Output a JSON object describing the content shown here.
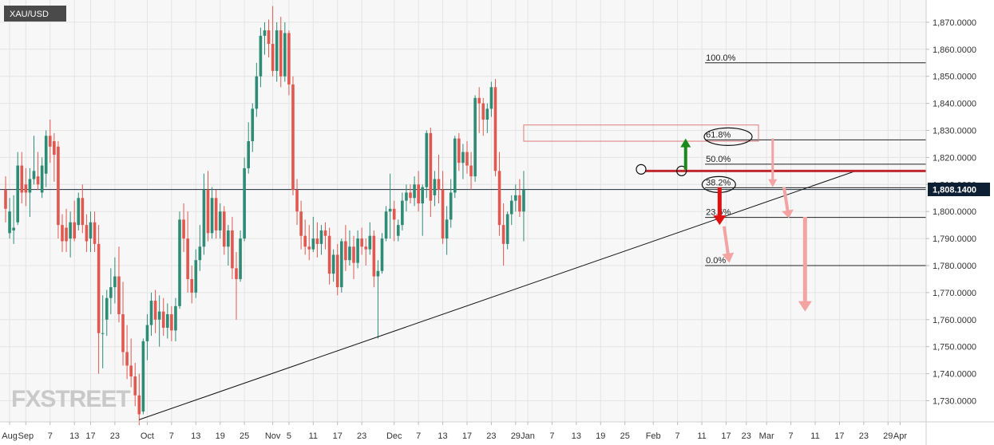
{
  "symbol": "XAU/USD",
  "logo_text": "FXSTREET",
  "current_price_label": "1,808.1400",
  "colors": {
    "up": "#2e8b75",
    "down": "#e0584f",
    "resistance": "#c0282f",
    "arrow_up": "#1a8a1a",
    "arrow_down": "#e01010",
    "arrow_faded": "#f4a3a3",
    "price_tag": "#0d1f33",
    "logo": "#c9c9c9"
  },
  "chart_data": {
    "type": "candlestick",
    "title": "",
    "y_range": [
      1721,
      1877
    ],
    "x_range": [
      0,
      188
    ],
    "y_ticks": [
      {
        "value": 1730,
        "label": "1,730.0000"
      },
      {
        "value": 1740,
        "label": "1,740.0000"
      },
      {
        "value": 1750,
        "label": "1,750.0000"
      },
      {
        "value": 1760,
        "label": "1,760.0000"
      },
      {
        "value": 1770,
        "label": "1,770.0000"
      },
      {
        "value": 1780,
        "label": "1,780.0000"
      },
      {
        "value": 1790,
        "label": "1,790.0000"
      },
      {
        "value": 1800,
        "label": "1,800.0000"
      },
      {
        "value": 1810,
        "label": "1,810.0000"
      },
      {
        "value": 1820,
        "label": "1,820.0000"
      },
      {
        "value": 1830,
        "label": "1,830.0000"
      },
      {
        "value": 1840,
        "label": "1,840.0000"
      },
      {
        "value": 1850,
        "label": "1,850.0000"
      },
      {
        "value": 1860,
        "label": "1,860.0000"
      },
      {
        "value": 1870,
        "label": "1,870.0000"
      }
    ],
    "x_ticks": [
      {
        "day": 1,
        "label": "Aug"
      },
      {
        "day": 5,
        "label": "Sep"
      },
      {
        "day": 11,
        "label": "7"
      },
      {
        "day": 17,
        "label": "13"
      },
      {
        "day": 21,
        "label": "17"
      },
      {
        "day": 27,
        "label": "23"
      },
      {
        "day": 35,
        "label": "Oct"
      },
      {
        "day": 41,
        "label": "7"
      },
      {
        "day": 47,
        "label": "13"
      },
      {
        "day": 53,
        "label": "19"
      },
      {
        "day": 59,
        "label": "25"
      },
      {
        "day": 66,
        "label": "Nov"
      },
      {
        "day": 70,
        "label": "5"
      },
      {
        "day": 76,
        "label": "11"
      },
      {
        "day": 82,
        "label": "17"
      },
      {
        "day": 88,
        "label": "23"
      },
      {
        "day": 96,
        "label": "Dec"
      },
      {
        "day": 102,
        "label": "7"
      },
      {
        "day": 108,
        "label": "13"
      },
      {
        "day": 114,
        "label": "17"
      },
      {
        "day": 120,
        "label": "23"
      },
      {
        "day": 126,
        "label": "29"
      },
      {
        "day": 129,
        "label": "Jan"
      },
      {
        "day": 135,
        "label": "7"
      },
      {
        "day": 141,
        "label": "13"
      },
      {
        "day": 147,
        "label": "19"
      },
      {
        "day": 153,
        "label": "25"
      },
      {
        "day": 160,
        "label": "Feb"
      },
      {
        "day": 166,
        "label": "7"
      },
      {
        "day": 172,
        "label": "11"
      },
      {
        "day": 178,
        "label": "17"
      },
      {
        "day": 183,
        "label": "23"
      },
      {
        "day": 188,
        "label": "Mar"
      },
      {
        "day": 194,
        "label": "7"
      },
      {
        "day": 200,
        "label": "11"
      },
      {
        "day": 206,
        "label": "17"
      },
      {
        "day": 212,
        "label": "23"
      },
      {
        "day": 218,
        "label": "29"
      },
      {
        "day": 221,
        "label": "Apr"
      }
    ],
    "candles": [
      {
        "o": 1808,
        "h": 1813,
        "l": 1796,
        "c": 1801
      },
      {
        "o": 1792,
        "h": 1805,
        "l": 1790,
        "c": 1800
      },
      {
        "o": 1793,
        "h": 1806,
        "l": 1788,
        "c": 1794
      },
      {
        "o": 1796,
        "h": 1822,
        "l": 1795,
        "c": 1817
      },
      {
        "o": 1817,
        "h": 1822,
        "l": 1803,
        "c": 1807
      },
      {
        "o": 1810,
        "h": 1816,
        "l": 1802,
        "c": 1807
      },
      {
        "o": 1807,
        "h": 1816,
        "l": 1798,
        "c": 1812
      },
      {
        "o": 1812,
        "h": 1828,
        "l": 1810,
        "c": 1815
      },
      {
        "o": 1813,
        "h": 1822,
        "l": 1808,
        "c": 1810
      },
      {
        "o": 1807,
        "h": 1820,
        "l": 1805,
        "c": 1817
      },
      {
        "o": 1814,
        "h": 1830,
        "l": 1809,
        "c": 1828
      },
      {
        "o": 1828,
        "h": 1834,
        "l": 1818,
        "c": 1824
      },
      {
        "o": 1826,
        "h": 1829,
        "l": 1811,
        "c": 1821
      },
      {
        "o": 1824,
        "h": 1826,
        "l": 1790,
        "c": 1795
      },
      {
        "o": 1795,
        "h": 1799,
        "l": 1785,
        "c": 1789
      },
      {
        "o": 1794,
        "h": 1801,
        "l": 1785,
        "c": 1789
      },
      {
        "o": 1790,
        "h": 1800,
        "l": 1783,
        "c": 1796
      },
      {
        "o": 1796,
        "h": 1804,
        "l": 1789,
        "c": 1790
      },
      {
        "o": 1795,
        "h": 1807,
        "l": 1793,
        "c": 1805
      },
      {
        "o": 1805,
        "h": 1810,
        "l": 1792,
        "c": 1795
      },
      {
        "o": 1795,
        "h": 1799,
        "l": 1785,
        "c": 1789
      },
      {
        "o": 1790,
        "h": 1800,
        "l": 1785,
        "c": 1796
      },
      {
        "o": 1796,
        "h": 1800,
        "l": 1785,
        "c": 1788
      },
      {
        "o": 1788,
        "h": 1795,
        "l": 1740,
        "c": 1755
      },
      {
        "o": 1755,
        "h": 1769,
        "l": 1742,
        "c": 1755
      },
      {
        "o": 1760,
        "h": 1771,
        "l": 1754,
        "c": 1768
      },
      {
        "o": 1768,
        "h": 1779,
        "l": 1762,
        "c": 1772
      },
      {
        "o": 1772,
        "h": 1783,
        "l": 1766,
        "c": 1776
      },
      {
        "o": 1776,
        "h": 1787,
        "l": 1759,
        "c": 1762
      },
      {
        "o": 1762,
        "h": 1774,
        "l": 1743,
        "c": 1748
      },
      {
        "o": 1748,
        "h": 1758,
        "l": 1738,
        "c": 1743
      },
      {
        "o": 1743,
        "h": 1753,
        "l": 1735,
        "c": 1739
      },
      {
        "o": 1739,
        "h": 1744,
        "l": 1728,
        "c": 1732
      },
      {
        "o": 1732,
        "h": 1740,
        "l": 1721,
        "c": 1725
      },
      {
        "o": 1726,
        "h": 1753,
        "l": 1725,
        "c": 1752
      },
      {
        "o": 1752,
        "h": 1762,
        "l": 1745,
        "c": 1758
      },
      {
        "o": 1758,
        "h": 1770,
        "l": 1754,
        "c": 1767
      },
      {
        "o": 1767,
        "h": 1771,
        "l": 1755,
        "c": 1760
      },
      {
        "o": 1760,
        "h": 1769,
        "l": 1750,
        "c": 1763
      },
      {
        "o": 1763,
        "h": 1768,
        "l": 1754,
        "c": 1757
      },
      {
        "o": 1757,
        "h": 1766,
        "l": 1753,
        "c": 1762
      },
      {
        "o": 1762,
        "h": 1765,
        "l": 1752,
        "c": 1756
      },
      {
        "o": 1756,
        "h": 1768,
        "l": 1752,
        "c": 1765
      },
      {
        "o": 1765,
        "h": 1800,
        "l": 1764,
        "c": 1797
      },
      {
        "o": 1797,
        "h": 1803,
        "l": 1785,
        "c": 1790
      },
      {
        "o": 1790,
        "h": 1800,
        "l": 1770,
        "c": 1775
      },
      {
        "o": 1775,
        "h": 1780,
        "l": 1766,
        "c": 1770
      },
      {
        "o": 1770,
        "h": 1786,
        "l": 1768,
        "c": 1782
      },
      {
        "o": 1782,
        "h": 1795,
        "l": 1778,
        "c": 1787
      },
      {
        "o": 1787,
        "h": 1814,
        "l": 1784,
        "c": 1808
      },
      {
        "o": 1808,
        "h": 1815,
        "l": 1789,
        "c": 1792
      },
      {
        "o": 1792,
        "h": 1809,
        "l": 1790,
        "c": 1805
      },
      {
        "o": 1805,
        "h": 1808,
        "l": 1790,
        "c": 1793
      },
      {
        "o": 1793,
        "h": 1803,
        "l": 1790,
        "c": 1800
      },
      {
        "o": 1800,
        "h": 1802,
        "l": 1784,
        "c": 1787
      },
      {
        "o": 1787,
        "h": 1795,
        "l": 1780,
        "c": 1793
      },
      {
        "o": 1793,
        "h": 1798,
        "l": 1775,
        "c": 1779
      },
      {
        "o": 1779,
        "h": 1785,
        "l": 1760,
        "c": 1775
      },
      {
        "o": 1775,
        "h": 1793,
        "l": 1774,
        "c": 1790
      },
      {
        "o": 1790,
        "h": 1820,
        "l": 1789,
        "c": 1816
      },
      {
        "o": 1816,
        "h": 1833,
        "l": 1814,
        "c": 1826
      },
      {
        "o": 1826,
        "h": 1840,
        "l": 1822,
        "c": 1838
      },
      {
        "o": 1838,
        "h": 1855,
        "l": 1835,
        "c": 1850
      },
      {
        "o": 1850,
        "h": 1868,
        "l": 1846,
        "c": 1865
      },
      {
        "o": 1865,
        "h": 1870,
        "l": 1858,
        "c": 1867
      },
      {
        "o": 1867,
        "h": 1871,
        "l": 1857,
        "c": 1862
      },
      {
        "o": 1862,
        "h": 1876,
        "l": 1850,
        "c": 1852
      },
      {
        "o": 1852,
        "h": 1870,
        "l": 1848,
        "c": 1867
      },
      {
        "o": 1867,
        "h": 1872,
        "l": 1846,
        "c": 1850
      },
      {
        "o": 1850,
        "h": 1870,
        "l": 1848,
        "c": 1866
      },
      {
        "o": 1866,
        "h": 1867,
        "l": 1843,
        "c": 1847
      },
      {
        "o": 1847,
        "h": 1850,
        "l": 1806,
        "c": 1808
      },
      {
        "o": 1808,
        "h": 1812,
        "l": 1795,
        "c": 1800
      },
      {
        "o": 1800,
        "h": 1804,
        "l": 1786,
        "c": 1791
      },
      {
        "o": 1791,
        "h": 1797,
        "l": 1784,
        "c": 1787
      },
      {
        "o": 1787,
        "h": 1795,
        "l": 1782,
        "c": 1786
      },
      {
        "o": 1786,
        "h": 1798,
        "l": 1785,
        "c": 1790
      },
      {
        "o": 1790,
        "h": 1796,
        "l": 1783,
        "c": 1788
      },
      {
        "o": 1788,
        "h": 1795,
        "l": 1784,
        "c": 1793
      },
      {
        "o": 1793,
        "h": 1796,
        "l": 1786,
        "c": 1791
      },
      {
        "o": 1791,
        "h": 1794,
        "l": 1773,
        "c": 1777
      },
      {
        "o": 1777,
        "h": 1786,
        "l": 1774,
        "c": 1784
      },
      {
        "o": 1784,
        "h": 1788,
        "l": 1769,
        "c": 1772
      },
      {
        "o": 1772,
        "h": 1790,
        "l": 1770,
        "c": 1789
      },
      {
        "o": 1789,
        "h": 1795,
        "l": 1778,
        "c": 1782
      },
      {
        "o": 1782,
        "h": 1793,
        "l": 1780,
        "c": 1787
      },
      {
        "o": 1787,
        "h": 1791,
        "l": 1775,
        "c": 1781
      },
      {
        "o": 1781,
        "h": 1793,
        "l": 1779,
        "c": 1790
      },
      {
        "o": 1790,
        "h": 1794,
        "l": 1784,
        "c": 1787
      },
      {
        "o": 1787,
        "h": 1790,
        "l": 1780,
        "c": 1786
      },
      {
        "o": 1786,
        "h": 1796,
        "l": 1784,
        "c": 1791
      },
      {
        "o": 1791,
        "h": 1793,
        "l": 1772,
        "c": 1776
      },
      {
        "o": 1776,
        "h": 1782,
        "l": 1753,
        "c": 1778
      },
      {
        "o": 1778,
        "h": 1792,
        "l": 1777,
        "c": 1790
      },
      {
        "o": 1790,
        "h": 1802,
        "l": 1789,
        "c": 1800
      },
      {
        "o": 1800,
        "h": 1814,
        "l": 1790,
        "c": 1801
      },
      {
        "o": 1801,
        "h": 1804,
        "l": 1789,
        "c": 1797
      },
      {
        "o": 1791,
        "h": 1797,
        "l": 1789,
        "c": 1795
      },
      {
        "o": 1795,
        "h": 1807,
        "l": 1793,
        "c": 1804
      },
      {
        "o": 1804,
        "h": 1810,
        "l": 1800,
        "c": 1807
      },
      {
        "o": 1807,
        "h": 1810,
        "l": 1803,
        "c": 1805
      },
      {
        "o": 1805,
        "h": 1813,
        "l": 1802,
        "c": 1810
      },
      {
        "o": 1810,
        "h": 1815,
        "l": 1800,
        "c": 1803
      },
      {
        "o": 1803,
        "h": 1810,
        "l": 1791,
        "c": 1809
      },
      {
        "o": 1809,
        "h": 1830,
        "l": 1805,
        "c": 1829
      },
      {
        "o": 1829,
        "h": 1831,
        "l": 1798,
        "c": 1804
      },
      {
        "o": 1806,
        "h": 1815,
        "l": 1802,
        "c": 1812
      },
      {
        "o": 1812,
        "h": 1821,
        "l": 1803,
        "c": 1808
      },
      {
        "o": 1808,
        "h": 1815,
        "l": 1788,
        "c": 1790
      },
      {
        "o": 1790,
        "h": 1802,
        "l": 1784,
        "c": 1797
      },
      {
        "o": 1797,
        "h": 1812,
        "l": 1794,
        "c": 1807
      },
      {
        "o": 1807,
        "h": 1828,
        "l": 1805,
        "c": 1827
      },
      {
        "o": 1827,
        "h": 1829,
        "l": 1815,
        "c": 1818
      },
      {
        "o": 1818,
        "h": 1825,
        "l": 1812,
        "c": 1822
      },
      {
        "o": 1822,
        "h": 1826,
        "l": 1814,
        "c": 1817
      },
      {
        "o": 1817,
        "h": 1822,
        "l": 1808,
        "c": 1813
      },
      {
        "o": 1813,
        "h": 1843,
        "l": 1811,
        "c": 1842
      },
      {
        "o": 1842,
        "h": 1846,
        "l": 1829,
        "c": 1840
      },
      {
        "o": 1840,
        "h": 1842,
        "l": 1828,
        "c": 1834
      },
      {
        "o": 1834,
        "h": 1840,
        "l": 1829,
        "c": 1838
      },
      {
        "o": 1838,
        "h": 1848,
        "l": 1835,
        "c": 1846
      },
      {
        "o": 1846,
        "h": 1849,
        "l": 1813,
        "c": 1815
      },
      {
        "o": 1815,
        "h": 1822,
        "l": 1791,
        "c": 1795
      },
      {
        "o": 1795,
        "h": 1803,
        "l": 1780,
        "c": 1788
      },
      {
        "o": 1788,
        "h": 1800,
        "l": 1786,
        "c": 1799
      },
      {
        "o": 1799,
        "h": 1806,
        "l": 1795,
        "c": 1804
      },
      {
        "o": 1804,
        "h": 1810,
        "l": 1800,
        "c": 1806
      },
      {
        "o": 1806,
        "h": 1812,
        "l": 1798,
        "c": 1800
      },
      {
        "o": 1800,
        "h": 1815,
        "l": 1789,
        "c": 1808
      }
    ],
    "fibonacci": [
      {
        "label": "100.0%",
        "value": 1855
      },
      {
        "label": "61.8%",
        "value": 1826.5
      },
      {
        "label": "50.0%",
        "value": 1817.5
      },
      {
        "label": "38.2%",
        "value": 1808.8
      },
      {
        "label": "23.6%",
        "value": 1797.8
      },
      {
        "label": "0.0%",
        "value": 1780
      }
    ],
    "current_price": 1808.14,
    "resistance_level": 1815,
    "trendline": {
      "from": {
        "day": 33,
        "price": 1723
      },
      "to": {
        "day": 210,
        "price": 1815
      }
    },
    "resistance_box": {
      "from_day": 128,
      "to_day": 186,
      "top": 1832,
      "bottom": 1826
    },
    "grid": true
  }
}
